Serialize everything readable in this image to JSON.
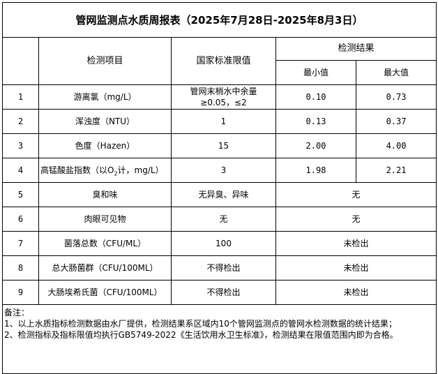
{
  "title": "管网监测点水质周报表（2025年7月28日-2025年8月3日）",
  "headers": {
    "item": "检测项目",
    "standard": "国家标准限值",
    "result": "检测结果",
    "min": "最小值",
    "max": "最大值"
  },
  "rows": [
    {
      "no": "1",
      "item": "游离氯（mg/L）",
      "standard": "管网末梢水中余量≥0.05，≤2",
      "min": "0.10",
      "max": "0.73"
    },
    {
      "no": "2",
      "item": "浑浊度（NTU）",
      "standard": "1",
      "min": "0.13",
      "max": "0.37"
    },
    {
      "no": "3",
      "item": "色度（Hazen）",
      "standard": "15",
      "min": "2.00",
      "max": "4.00"
    },
    {
      "no": "4",
      "item_prefix": "高锰酸盐指数（以O",
      "item_sub": "2",
      "item_suffix": "计，mg/L）",
      "standard": "3",
      "min": "1.98",
      "max": "2.21"
    },
    {
      "no": "5",
      "item": "臭和味",
      "standard": "无异臭、异味",
      "result": "无"
    },
    {
      "no": "6",
      "item": "肉眼可见物",
      "standard": "无",
      "result": "无"
    },
    {
      "no": "7",
      "item": "菌落总数（CFU/ML）",
      "standard": "100",
      "result": "未检出"
    },
    {
      "no": "8",
      "item": "总大肠菌群（CFU/100ML）",
      "standard": "不得检出",
      "result": "未检出"
    },
    {
      "no": "9",
      "item": "大肠埃希氏菌（CFU/100ML）",
      "standard": "不得检出",
      "result": "未检出"
    }
  ],
  "notes": {
    "label": "备注：",
    "line1": "1、以上水质指标检测数据由水厂提供，检测结果系区域内10个管网监测点的管网水检测数据的统计结果；",
    "line2": "2、检测指标及指标限值均执行GB5749-2022《生活饮用水卫生标准》，检测结果在限值范围内即为合格。"
  }
}
